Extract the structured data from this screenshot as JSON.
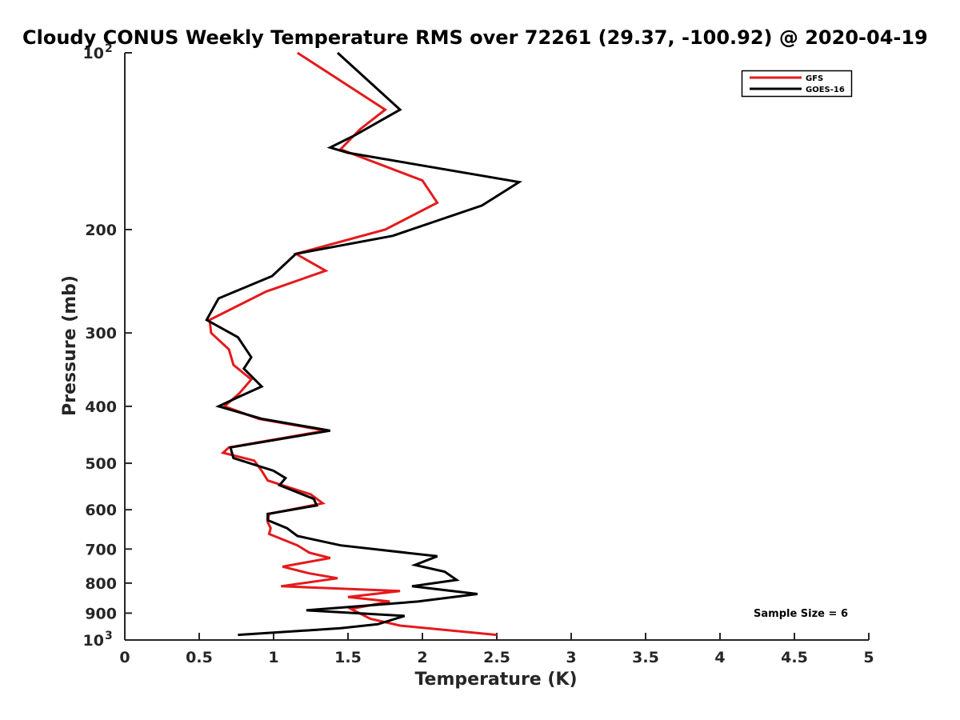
{
  "chart_data": {
    "type": "line",
    "title": "Cloudy CONUS Weekly Temperature RMS over 72261 (29.37, -100.92) @ 2020-04-19",
    "xlabel": "Temperature (K)",
    "ylabel": "Pressure (mb)",
    "xlim": [
      0,
      5
    ],
    "ylim": [
      100,
      1000
    ],
    "y_scale": "log",
    "y_reversed": true,
    "grid": false,
    "legend_position": "top-right",
    "x_ticks": [
      {
        "value": 0,
        "label": "0"
      },
      {
        "value": 0.5,
        "label": "0.5"
      },
      {
        "value": 1,
        "label": "1"
      },
      {
        "value": 1.5,
        "label": "1.5"
      },
      {
        "value": 2,
        "label": "2"
      },
      {
        "value": 2.5,
        "label": "2.5"
      },
      {
        "value": 3,
        "label": "3"
      },
      {
        "value": 3.5,
        "label": "3.5"
      },
      {
        "value": 4,
        "label": "4"
      },
      {
        "value": 4.5,
        "label": "4.5"
      },
      {
        "value": 5,
        "label": "5"
      }
    ],
    "y_ticks": [
      {
        "value": 100,
        "label": "10",
        "sup": "2"
      },
      {
        "value": 200,
        "label": "200",
        "sup": ""
      },
      {
        "value": 300,
        "label": "300",
        "sup": ""
      },
      {
        "value": 400,
        "label": "400",
        "sup": ""
      },
      {
        "value": 500,
        "label": "500",
        "sup": ""
      },
      {
        "value": 600,
        "label": "600",
        "sup": ""
      },
      {
        "value": 700,
        "label": "700",
        "sup": ""
      },
      {
        "value": 800,
        "label": "800",
        "sup": ""
      },
      {
        "value": 900,
        "label": "900",
        "sup": ""
      },
      {
        "value": 1000,
        "label": "10",
        "sup": "3"
      }
    ],
    "series": [
      {
        "name": "GFS",
        "color": "#e41a1c",
        "points": [
          [
            1.16,
            100
          ],
          [
            1.75,
            125
          ],
          [
            1.58,
            135
          ],
          [
            1.45,
            146
          ],
          [
            2.0,
            165
          ],
          [
            2.1,
            180
          ],
          [
            1.75,
            200
          ],
          [
            1.15,
            220
          ],
          [
            1.35,
            235
          ],
          [
            0.95,
            255
          ],
          [
            0.57,
            285
          ],
          [
            0.58,
            300
          ],
          [
            0.7,
            320
          ],
          [
            0.73,
            340
          ],
          [
            0.85,
            360
          ],
          [
            0.77,
            380
          ],
          [
            0.67,
            400
          ],
          [
            0.9,
            420
          ],
          [
            1.35,
            440
          ],
          [
            0.7,
            470
          ],
          [
            0.66,
            480
          ],
          [
            0.87,
            495
          ],
          [
            0.92,
            515
          ],
          [
            0.96,
            535
          ],
          [
            1.25,
            565
          ],
          [
            1.33,
            585
          ],
          [
            0.97,
            610
          ],
          [
            0.96,
            630
          ],
          [
            0.98,
            645
          ],
          [
            0.97,
            660
          ],
          [
            1.16,
            690
          ],
          [
            1.24,
            710
          ],
          [
            1.38,
            725
          ],
          [
            1.06,
            750
          ],
          [
            1.24,
            770
          ],
          [
            1.43,
            785
          ],
          [
            1.05,
            810
          ],
          [
            1.85,
            825
          ],
          [
            1.5,
            845
          ],
          [
            1.78,
            860
          ],
          [
            1.52,
            885
          ],
          [
            1.65,
            920
          ],
          [
            1.85,
            945
          ],
          [
            2.5,
            980
          ]
        ]
      },
      {
        "name": "GOES-16",
        "color": "#000000",
        "points": [
          [
            1.43,
            100
          ],
          [
            1.85,
            125
          ],
          [
            1.55,
            138
          ],
          [
            1.38,
            145
          ],
          [
            1.5,
            148
          ],
          [
            2.65,
            166
          ],
          [
            2.4,
            182
          ],
          [
            1.8,
            205
          ],
          [
            1.15,
            220
          ],
          [
            0.99,
            240
          ],
          [
            0.63,
            262
          ],
          [
            0.55,
            285
          ],
          [
            0.76,
            305
          ],
          [
            0.85,
            330
          ],
          [
            0.8,
            345
          ],
          [
            0.92,
            370
          ],
          [
            0.77,
            385
          ],
          [
            0.63,
            400
          ],
          [
            0.92,
            420
          ],
          [
            1.38,
            440
          ],
          [
            0.71,
            470
          ],
          [
            0.73,
            490
          ],
          [
            1.0,
            515
          ],
          [
            1.08,
            530
          ],
          [
            1.04,
            545
          ],
          [
            1.27,
            575
          ],
          [
            1.29,
            590
          ],
          [
            0.96,
            610
          ],
          [
            0.96,
            625
          ],
          [
            1.09,
            645
          ],
          [
            1.16,
            665
          ],
          [
            1.45,
            690
          ],
          [
            2.1,
            720
          ],
          [
            1.95,
            745
          ],
          [
            2.15,
            765
          ],
          [
            2.23,
            790
          ],
          [
            1.93,
            810
          ],
          [
            2.37,
            835
          ],
          [
            1.97,
            860
          ],
          [
            1.22,
            890
          ],
          [
            1.88,
            910
          ],
          [
            1.7,
            940
          ],
          [
            1.45,
            955
          ],
          [
            0.76,
            980
          ]
        ]
      }
    ],
    "annotations": [
      {
        "text": "Sample Size = 6"
      }
    ]
  }
}
